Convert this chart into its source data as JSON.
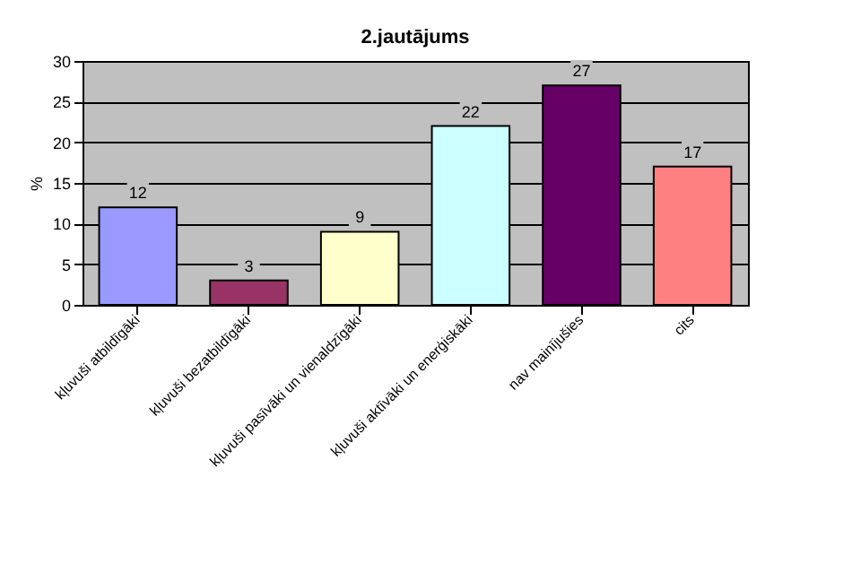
{
  "chart_data": {
    "type": "bar",
    "title": "2.jautājums",
    "ylabel": "%",
    "categories": [
      "kļuvuši atbildīgāki",
      "kļuvuši bezatbildīgāki",
      "kļuvuši pasīvāki un vienaldzīgāki",
      "kļuvuši aktīvāki un enerģiskāki",
      "nav mainījušies",
      "cits"
    ],
    "values": [
      12,
      3,
      9,
      22,
      27,
      17
    ],
    "colors": [
      "#9999ff",
      "#993366",
      "#ffffcc",
      "#ccffff",
      "#660066",
      "#ff8080"
    ],
    "ylim": [
      0,
      30
    ],
    "yticks": [
      0,
      5,
      10,
      15,
      20,
      25,
      30
    ],
    "grid": "y",
    "data_labels": true
  }
}
